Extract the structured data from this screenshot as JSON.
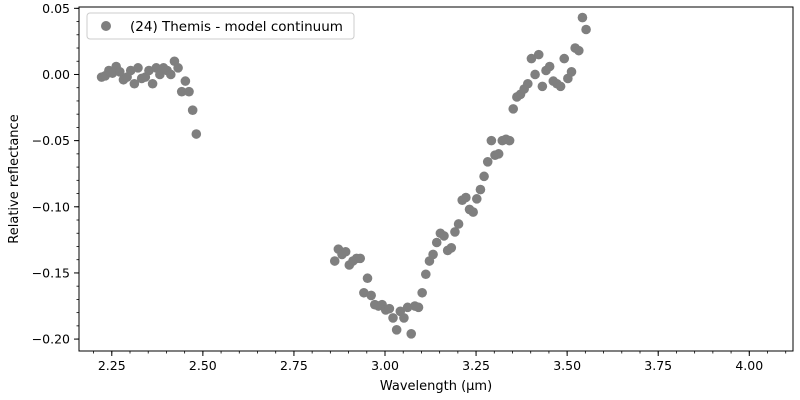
{
  "chart_data": {
    "type": "scatter",
    "xlabel": "Wavelength (μm)",
    "ylabel": "Relative reflectance",
    "xlim": [
      2.16,
      4.12
    ],
    "ylim": [
      -0.209,
      0.051
    ],
    "x_ticks": [
      2.25,
      2.5,
      2.75,
      3.0,
      3.25,
      3.5,
      3.75,
      4.0
    ],
    "x_tick_labels": [
      "2.25",
      "2.50",
      "2.75",
      "3.00",
      "3.25",
      "3.50",
      "3.75",
      "4.00"
    ],
    "y_ticks": [
      0.05,
      0.0,
      -0.05,
      -0.1,
      -0.15,
      -0.2
    ],
    "y_tick_labels": [
      "0.05",
      "0.00",
      "−0.05",
      "−0.10",
      "−0.15",
      "−0.20"
    ],
    "minor_ticks": true,
    "grid": false,
    "legend_position": "top-left",
    "marker_color": "#7f7f7f",
    "series": [
      {
        "name": "(24) Themis - model continuum",
        "points": [
          [
            2.222,
            -0.002
          ],
          [
            2.232,
            -0.001
          ],
          [
            2.242,
            0.003
          ],
          [
            2.252,
            0.001
          ],
          [
            2.262,
            0.006
          ],
          [
            2.272,
            0.002
          ],
          [
            2.282,
            -0.004
          ],
          [
            2.292,
            -0.002
          ],
          [
            2.302,
            0.003
          ],
          [
            2.312,
            -0.007
          ],
          [
            2.322,
            0.005
          ],
          [
            2.332,
            -0.003
          ],
          [
            2.342,
            -0.002
          ],
          [
            2.352,
            0.003
          ],
          [
            2.362,
            -0.007
          ],
          [
            2.372,
            0.005
          ],
          [
            2.382,
            0.0
          ],
          [
            2.392,
            0.005
          ],
          [
            2.402,
            0.003
          ],
          [
            2.412,
            0.0
          ],
          [
            2.422,
            0.01
          ],
          [
            2.432,
            0.005
          ],
          [
            2.442,
            -0.013
          ],
          [
            2.452,
            -0.005
          ],
          [
            2.462,
            -0.013
          ],
          [
            2.472,
            -0.027
          ],
          [
            2.482,
            -0.045
          ],
          [
            2.862,
            -0.141
          ],
          [
            2.872,
            -0.132
          ],
          [
            2.882,
            -0.136
          ],
          [
            2.892,
            -0.134
          ],
          [
            2.902,
            -0.144
          ],
          [
            2.912,
            -0.141
          ],
          [
            2.922,
            -0.139
          ],
          [
            2.932,
            -0.139
          ],
          [
            2.942,
            -0.165
          ],
          [
            2.952,
            -0.154
          ],
          [
            2.962,
            -0.167
          ],
          [
            2.972,
            -0.174
          ],
          [
            2.982,
            -0.175
          ],
          [
            2.992,
            -0.174
          ],
          [
            3.002,
            -0.178
          ],
          [
            3.012,
            -0.177
          ],
          [
            3.022,
            -0.184
          ],
          [
            3.032,
            -0.193
          ],
          [
            3.042,
            -0.179
          ],
          [
            3.052,
            -0.184
          ],
          [
            3.062,
            -0.176
          ],
          [
            3.072,
            -0.196
          ],
          [
            3.082,
            -0.175
          ],
          [
            3.092,
            -0.176
          ],
          [
            3.102,
            -0.165
          ],
          [
            3.112,
            -0.151
          ],
          [
            3.122,
            -0.141
          ],
          [
            3.132,
            -0.136
          ],
          [
            3.142,
            -0.127
          ],
          [
            3.152,
            -0.12
          ],
          [
            3.162,
            -0.122
          ],
          [
            3.172,
            -0.133
          ],
          [
            3.182,
            -0.131
          ],
          [
            3.192,
            -0.119
          ],
          [
            3.202,
            -0.113
          ],
          [
            3.212,
            -0.095
          ],
          [
            3.222,
            -0.093
          ],
          [
            3.232,
            -0.102
          ],
          [
            3.242,
            -0.104
          ],
          [
            3.252,
            -0.094
          ],
          [
            3.262,
            -0.087
          ],
          [
            3.272,
            -0.077
          ],
          [
            3.282,
            -0.066
          ],
          [
            3.292,
            -0.05
          ],
          [
            3.302,
            -0.061
          ],
          [
            3.312,
            -0.06
          ],
          [
            3.322,
            -0.05
          ],
          [
            3.332,
            -0.049
          ],
          [
            3.342,
            -0.05
          ],
          [
            3.352,
            -0.026
          ],
          [
            3.362,
            -0.017
          ],
          [
            3.372,
            -0.015
          ],
          [
            3.382,
            -0.011
          ],
          [
            3.392,
            -0.007
          ],
          [
            3.402,
            0.012
          ],
          [
            3.412,
            0.0
          ],
          [
            3.422,
            0.015
          ],
          [
            3.432,
            -0.009
          ],
          [
            3.442,
            0.003
          ],
          [
            3.452,
            0.006
          ],
          [
            3.462,
            -0.005
          ],
          [
            3.472,
            -0.007
          ],
          [
            3.482,
            -0.009
          ],
          [
            3.492,
            0.012
          ],
          [
            3.502,
            -0.003
          ],
          [
            3.512,
            0.002
          ],
          [
            3.522,
            0.02
          ],
          [
            3.532,
            0.018
          ],
          [
            3.542,
            0.043
          ],
          [
            3.552,
            0.034
          ]
        ]
      }
    ]
  }
}
